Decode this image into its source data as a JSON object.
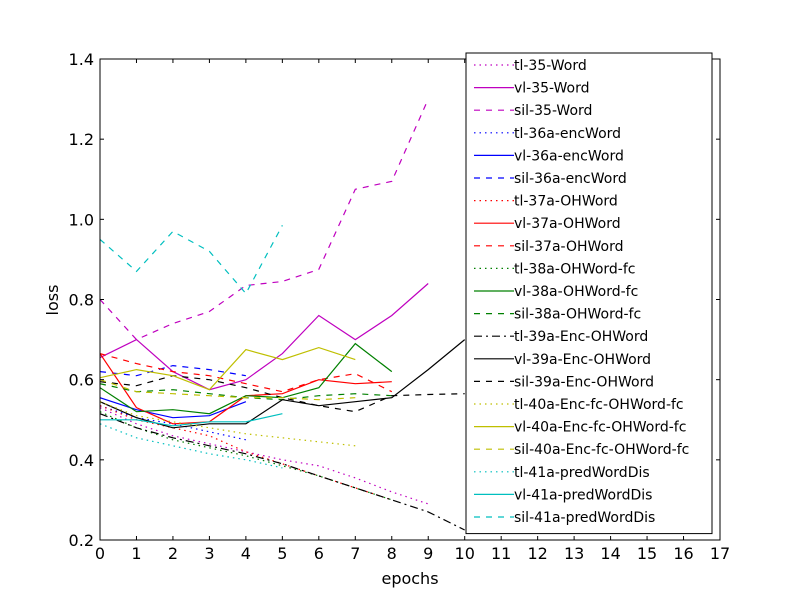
{
  "chart_data": {
    "type": "line",
    "xlabel": "epochs",
    "ylabel": "loss",
    "xlim": [
      0,
      17
    ],
    "ylim": [
      0.2,
      1.4
    ],
    "xticks": [
      "0",
      "1",
      "2",
      "3",
      "4",
      "5",
      "6",
      "7",
      "8",
      "9",
      "10",
      "11",
      "12",
      "13",
      "14",
      "15",
      "16",
      "17"
    ],
    "yticks": [
      "0.2",
      "0.4",
      "0.6",
      "0.8",
      "1.0",
      "1.2",
      "1.4"
    ],
    "grid": false,
    "legend_position": "top-right",
    "series": [
      {
        "name": "tl-35-Word",
        "color": "#bf00bf",
        "style": "dotted",
        "x": [
          0,
          1,
          2,
          3,
          4,
          5,
          6,
          7,
          8,
          9
        ],
        "y": [
          0.53,
          0.49,
          0.46,
          0.44,
          0.42,
          0.4,
          0.385,
          0.355,
          0.32,
          0.29
        ]
      },
      {
        "name": "vl-35-Word",
        "color": "#bf00bf",
        "style": "solid",
        "x": [
          0,
          1,
          2,
          3,
          4,
          5,
          6,
          7,
          8,
          9
        ],
        "y": [
          0.655,
          0.7,
          0.62,
          0.575,
          0.6,
          0.665,
          0.76,
          0.7,
          0.76,
          0.84
        ]
      },
      {
        "name": "sil-35-Word",
        "color": "#bf00bf",
        "style": "dashed",
        "x": [
          0,
          1,
          2,
          3,
          4,
          5,
          6,
          7,
          8,
          9
        ],
        "y": [
          0.8,
          0.7,
          0.74,
          0.77,
          0.835,
          0.845,
          0.875,
          1.075,
          1.095,
          1.3
        ]
      },
      {
        "name": "tl-36a-encWord",
        "color": "#0000ff",
        "style": "dotted",
        "x": [
          0,
          1,
          2,
          3,
          4
        ],
        "y": [
          0.535,
          0.505,
          0.49,
          0.47,
          0.45
        ]
      },
      {
        "name": "vl-36a-encWord",
        "color": "#0000ff",
        "style": "solid",
        "x": [
          0,
          1,
          2,
          3,
          4
        ],
        "y": [
          0.555,
          0.525,
          0.505,
          0.51,
          0.545
        ]
      },
      {
        "name": "sil-36a-encWord",
        "color": "#0000ff",
        "style": "dashed",
        "x": [
          0,
          1,
          2,
          3,
          4
        ],
        "y": [
          0.62,
          0.61,
          0.635,
          0.625,
          0.61
        ]
      },
      {
        "name": "tl-37a-OHWord",
        "color": "#ff0000",
        "style": "dotted",
        "x": [
          0,
          1,
          2,
          3,
          4,
          5,
          6,
          7,
          8
        ],
        "y": [
          0.535,
          0.5,
          0.48,
          0.46,
          0.42,
          0.39,
          0.36,
          0.33,
          0.3
        ]
      },
      {
        "name": "vl-37a-OHWord",
        "color": "#ff0000",
        "style": "solid",
        "x": [
          0,
          1,
          2,
          3,
          4,
          5,
          6,
          7,
          8
        ],
        "y": [
          0.665,
          0.53,
          0.49,
          0.495,
          0.56,
          0.565,
          0.6,
          0.59,
          0.595
        ]
      },
      {
        "name": "sil-37a-OHWord",
        "color": "#ff0000",
        "style": "dashed",
        "x": [
          0,
          1,
          2,
          3,
          4,
          5,
          6,
          7,
          8
        ],
        "y": [
          0.665,
          0.64,
          0.62,
          0.61,
          0.59,
          0.57,
          0.6,
          0.615,
          0.57
        ]
      },
      {
        "name": "tl-38a-OHWord-fc",
        "color": "#008000",
        "style": "dotted",
        "x": [
          0,
          1,
          2,
          3,
          4,
          5,
          6,
          7,
          8
        ],
        "y": [
          0.52,
          0.48,
          0.45,
          0.43,
          0.41,
          0.385,
          0.36,
          0.33,
          0.3
        ]
      },
      {
        "name": "vl-38a-OHWord-fc",
        "color": "#008000",
        "style": "solid",
        "x": [
          0,
          1,
          2,
          3,
          4,
          5,
          6,
          7,
          8
        ],
        "y": [
          0.58,
          0.52,
          0.525,
          0.515,
          0.56,
          0.555,
          0.58,
          0.69,
          0.62
        ]
      },
      {
        "name": "sil-38a-OHWord-fc",
        "color": "#008000",
        "style": "dashed",
        "x": [
          0,
          1,
          2,
          3,
          4,
          5,
          6,
          7,
          8
        ],
        "y": [
          0.59,
          0.57,
          0.575,
          0.565,
          0.555,
          0.55,
          0.56,
          0.565,
          0.56
        ]
      },
      {
        "name": "tl-39a-Enc-OHWord",
        "color": "#000000",
        "style": "dashdot",
        "x": [
          0,
          1,
          2,
          3,
          4,
          5,
          6,
          7,
          8,
          9,
          10
        ],
        "y": [
          0.515,
          0.48,
          0.455,
          0.435,
          0.415,
          0.39,
          0.36,
          0.33,
          0.3,
          0.27,
          0.225
        ]
      },
      {
        "name": "vl-39a-Enc-OHWord",
        "color": "#000000",
        "style": "solid",
        "x": [
          0,
          1,
          2,
          3,
          4,
          5,
          6,
          7,
          8,
          9,
          10
        ],
        "y": [
          0.545,
          0.505,
          0.48,
          0.49,
          0.49,
          0.55,
          0.535,
          0.545,
          0.555,
          0.625,
          0.7
        ]
      },
      {
        "name": "sil-39a-Enc-OHWord",
        "color": "#000000",
        "style": "dashed",
        "x": [
          0,
          1,
          2,
          3,
          4,
          5,
          6,
          7,
          8,
          9,
          10
        ],
        "y": [
          0.595,
          0.585,
          0.61,
          0.6,
          0.58,
          0.555,
          0.535,
          0.52,
          0.56,
          0.563,
          0.565
        ]
      },
      {
        "name": "tl-40a-Enc-fc-OHWord-fc",
        "color": "#bfbf00",
        "style": "dotted",
        "x": [
          0,
          1,
          2,
          3,
          4,
          5,
          6,
          7
        ],
        "y": [
          0.545,
          0.51,
          0.495,
          0.48,
          0.465,
          0.455,
          0.445,
          0.435
        ]
      },
      {
        "name": "vl-40a-Enc-fc-OHWord-fc",
        "color": "#bfbf00",
        "style": "solid",
        "x": [
          0,
          1,
          2,
          3,
          4,
          5,
          6,
          7
        ],
        "y": [
          0.605,
          0.625,
          0.61,
          0.575,
          0.675,
          0.65,
          0.68,
          0.65
        ]
      },
      {
        "name": "sil-40a-Enc-fc-OHWord-fc",
        "color": "#bfbf00",
        "style": "dashed",
        "x": [
          0,
          1,
          2,
          3,
          4,
          5,
          6,
          7
        ],
        "y": [
          0.6,
          0.57,
          0.565,
          0.56,
          0.555,
          0.555,
          0.55,
          0.555
        ]
      },
      {
        "name": "tl-41a-predWordDis",
        "color": "#00bfbf",
        "style": "dotted",
        "x": [
          0,
          1,
          2,
          3,
          4,
          5
        ],
        "y": [
          0.49,
          0.455,
          0.435,
          0.415,
          0.4,
          0.38
        ]
      },
      {
        "name": "vl-41a-predWordDis",
        "color": "#00bfbf",
        "style": "solid",
        "x": [
          0,
          1,
          2,
          3,
          4,
          5
        ],
        "y": [
          0.5,
          0.5,
          0.485,
          0.495,
          0.495,
          0.515
        ]
      },
      {
        "name": "sil-41a-predWordDis",
        "color": "#00bfbf",
        "style": "dashed",
        "x": [
          0,
          1,
          2,
          3,
          4,
          5
        ],
        "y": [
          0.95,
          0.87,
          0.97,
          0.92,
          0.815,
          0.985
        ]
      }
    ]
  }
}
